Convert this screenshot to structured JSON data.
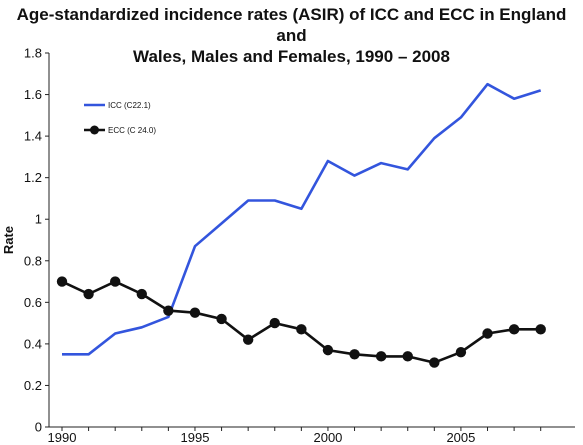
{
  "chart_data": {
    "type": "line",
    "title_line1": "Age-standardized incidence rates (ASIR) of ICC and ECC in England and",
    "title_line2": "Wales, Males and Females, 1990 – 2008",
    "xlabel": "",
    "ylabel": "Rate",
    "xlim": [
      1990,
      2009
    ],
    "ylim": [
      0,
      1.8
    ],
    "x_ticks": [
      1990,
      1995,
      2000,
      2005
    ],
    "y_ticks": [
      0,
      0.2,
      0.4,
      0.6,
      0.8,
      1,
      1.2,
      1.4,
      1.6,
      1.8
    ],
    "y_tick_labels": [
      "0",
      "0.2",
      "0.4",
      "0.6",
      "0.8",
      "1",
      "1.2",
      "1.4",
      "1.6",
      "1.8"
    ],
    "grid": false,
    "legend_position": "top-left",
    "x": [
      1990,
      1991,
      1992,
      1993,
      1994,
      1995,
      1996,
      1997,
      1998,
      1999,
      2000,
      2001,
      2002,
      2003,
      2004,
      2005,
      2006,
      2007,
      2008
    ],
    "series": [
      {
        "name": "ICC (C22.1)",
        "color": "#3355dd",
        "marker": "none",
        "values": [
          0.35,
          0.35,
          0.45,
          0.48,
          0.53,
          0.87,
          0.98,
          1.09,
          1.09,
          1.05,
          1.28,
          1.21,
          1.27,
          1.24,
          1.39,
          1.49,
          1.65,
          1.58,
          1.62
        ]
      },
      {
        "name": "ECC (C 24.0)",
        "color": "#111111",
        "marker": "circle",
        "values": [
          0.7,
          0.64,
          0.7,
          0.64,
          0.56,
          0.55,
          0.52,
          0.42,
          0.5,
          0.47,
          0.37,
          0.35,
          0.34,
          0.34,
          0.31,
          0.36,
          0.45,
          0.47,
          0.47
        ]
      }
    ]
  }
}
